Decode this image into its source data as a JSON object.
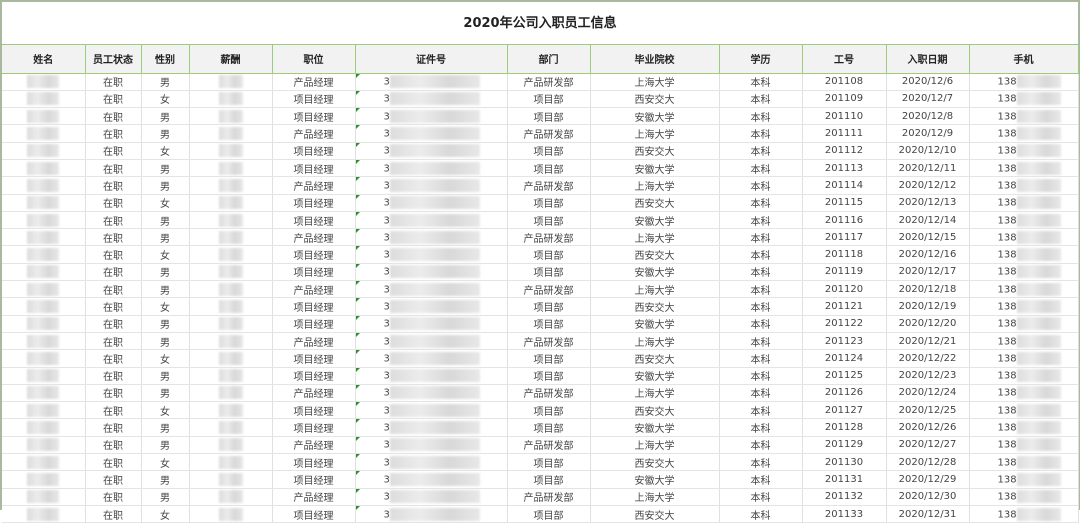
{
  "title": "2020年公司入职员工信息",
  "columns": [
    "姓名",
    "员工状态",
    "性别",
    "薪酬",
    "职位",
    "证件号",
    "部门",
    "毕业院校",
    "学历",
    "工号",
    "入职日期",
    "手机"
  ],
  "id_prefix": "3",
  "phone_prefix": "138",
  "rows": [
    [
      "在职",
      "男",
      "产品经理",
      "产品研发部",
      "上海大学",
      "本科",
      "201108",
      "2020/12/6"
    ],
    [
      "在职",
      "女",
      "项目经理",
      "项目部",
      "西安交大",
      "本科",
      "201109",
      "2020/12/7"
    ],
    [
      "在职",
      "男",
      "项目经理",
      "项目部",
      "安徽大学",
      "本科",
      "201110",
      "2020/12/8"
    ],
    [
      "在职",
      "男",
      "产品经理",
      "产品研发部",
      "上海大学",
      "本科",
      "201111",
      "2020/12/9"
    ],
    [
      "在职",
      "女",
      "项目经理",
      "项目部",
      "西安交大",
      "本科",
      "201112",
      "2020/12/10"
    ],
    [
      "在职",
      "男",
      "项目经理",
      "项目部",
      "安徽大学",
      "本科",
      "201113",
      "2020/12/11"
    ],
    [
      "在职",
      "男",
      "产品经理",
      "产品研发部",
      "上海大学",
      "本科",
      "201114",
      "2020/12/12"
    ],
    [
      "在职",
      "女",
      "项目经理",
      "项目部",
      "西安交大",
      "本科",
      "201115",
      "2020/12/13"
    ],
    [
      "在职",
      "男",
      "项目经理",
      "项目部",
      "安徽大学",
      "本科",
      "201116",
      "2020/12/14"
    ],
    [
      "在职",
      "男",
      "产品经理",
      "产品研发部",
      "上海大学",
      "本科",
      "201117",
      "2020/12/15"
    ],
    [
      "在职",
      "女",
      "项目经理",
      "项目部",
      "西安交大",
      "本科",
      "201118",
      "2020/12/16"
    ],
    [
      "在职",
      "男",
      "项目经理",
      "项目部",
      "安徽大学",
      "本科",
      "201119",
      "2020/12/17"
    ],
    [
      "在职",
      "男",
      "产品经理",
      "产品研发部",
      "上海大学",
      "本科",
      "201120",
      "2020/12/18"
    ],
    [
      "在职",
      "女",
      "项目经理",
      "项目部",
      "西安交大",
      "本科",
      "201121",
      "2020/12/19"
    ],
    [
      "在职",
      "男",
      "项目经理",
      "项目部",
      "安徽大学",
      "本科",
      "201122",
      "2020/12/20"
    ],
    [
      "在职",
      "男",
      "产品经理",
      "产品研发部",
      "上海大学",
      "本科",
      "201123",
      "2020/12/21"
    ],
    [
      "在职",
      "女",
      "项目经理",
      "项目部",
      "西安交大",
      "本科",
      "201124",
      "2020/12/22"
    ],
    [
      "在职",
      "男",
      "项目经理",
      "项目部",
      "安徽大学",
      "本科",
      "201125",
      "2020/12/23"
    ],
    [
      "在职",
      "男",
      "产品经理",
      "产品研发部",
      "上海大学",
      "本科",
      "201126",
      "2020/12/24"
    ],
    [
      "在职",
      "女",
      "项目经理",
      "项目部",
      "西安交大",
      "本科",
      "201127",
      "2020/12/25"
    ],
    [
      "在职",
      "男",
      "项目经理",
      "项目部",
      "安徽大学",
      "本科",
      "201128",
      "2020/12/26"
    ],
    [
      "在职",
      "男",
      "产品经理",
      "产品研发部",
      "上海大学",
      "本科",
      "201129",
      "2020/12/27"
    ],
    [
      "在职",
      "女",
      "项目经理",
      "项目部",
      "西安交大",
      "本科",
      "201130",
      "2020/12/28"
    ],
    [
      "在职",
      "男",
      "项目经理",
      "项目部",
      "安徽大学",
      "本科",
      "201131",
      "2020/12/29"
    ],
    [
      "在职",
      "男",
      "产品经理",
      "产品研发部",
      "上海大学",
      "本科",
      "201132",
      "2020/12/30"
    ],
    [
      "在职",
      "女",
      "项目经理",
      "项目部",
      "西安交大",
      "本科",
      "201133",
      "2020/12/31"
    ]
  ],
  "colors": {
    "grid_accent": "#9ccc7a",
    "header_bg": "#f2f2f2",
    "comment_marker": "#2f8f2f"
  }
}
